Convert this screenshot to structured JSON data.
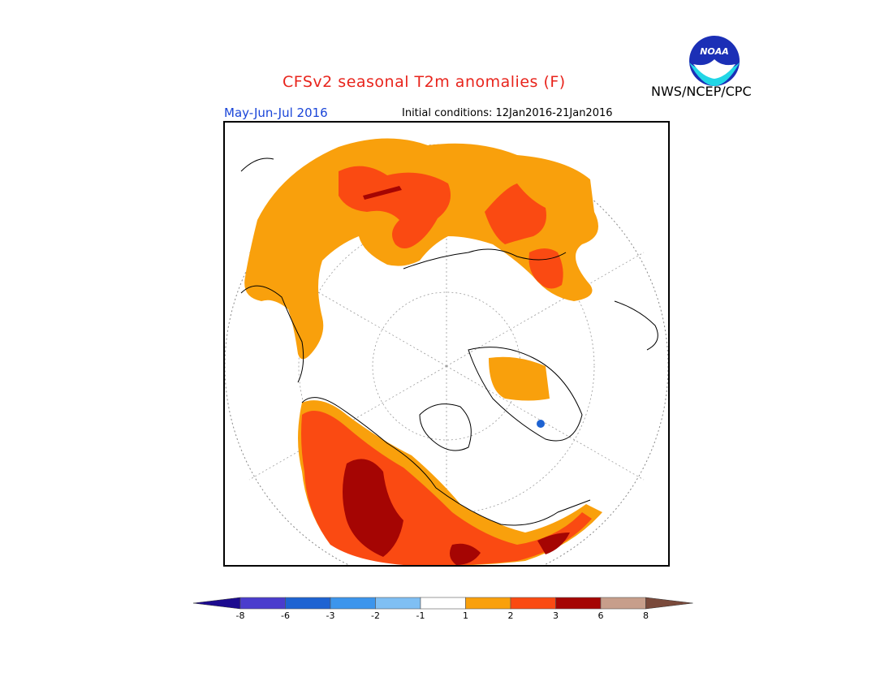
{
  "header": {
    "title": "CFSv2 seasonal T2m anomalies (F)",
    "season": "May-Jun-Jul 2016",
    "initial_conditions": "Initial conditions: 12Jan2016-21Jan2016",
    "agency": "NWS/NCEP/CPC"
  },
  "logo": {
    "text": "NOAA"
  },
  "colors": {
    "title": "#e8241c",
    "season": "#1a45d8",
    "anomaly_1_2": "#f9a00c",
    "anomaly_2_3": "#fa4a12",
    "anomaly_3_6": "#a50503"
  },
  "legend": {
    "bins": [
      {
        "color": "#1c0b8f"
      },
      {
        "color": "#4a3ccd"
      },
      {
        "color": "#1e63d2"
      },
      {
        "color": "#3c95ec"
      },
      {
        "color": "#7fbff3"
      },
      {
        "color": "#ffffff"
      },
      {
        "color": "#f9a00c"
      },
      {
        "color": "#fa4a12"
      },
      {
        "color": "#a50503"
      },
      {
        "color": "#c79e8b"
      },
      {
        "color": "#7a4a3b"
      }
    ],
    "tick_labels": [
      "-8",
      "-6",
      "-3",
      "-2",
      "-1",
      "1",
      "2",
      "3",
      "6",
      "8"
    ]
  }
}
